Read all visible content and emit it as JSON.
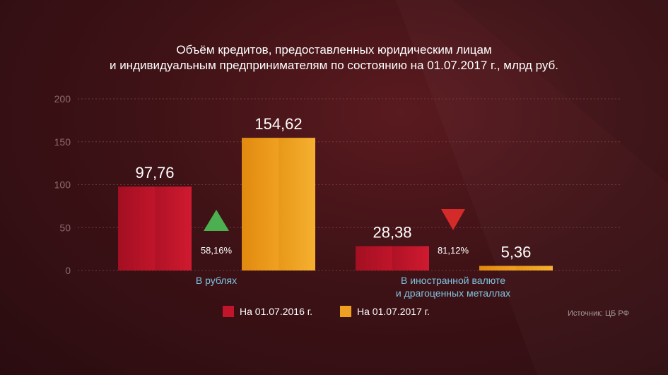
{
  "title_line1": "Объём кредитов, предоставленных юридическим лицам",
  "title_line2": "и индивидуальным предпринимателям по состоянию на 01.07.2017 г., млрд руб.",
  "source": "Источник: ЦБ РФ",
  "colors": {
    "series_2016": "#c0152a",
    "series_2017": "#f0a020",
    "up_arrow": "#4caf50",
    "down_arrow": "#d42a2a",
    "category_text": "#7fc3e0"
  },
  "chart_data": {
    "type": "bar",
    "categories": [
      "В рублях",
      "В иностранной валюте\nи драгоценных металлах"
    ],
    "series": [
      {
        "name": "На 01.07.2016 г.",
        "values": [
          97.76,
          28.38
        ],
        "value_labels": [
          "97,76",
          "28,38"
        ]
      },
      {
        "name": "На 01.07.2017 г.",
        "values": [
          154.62,
          5.36
        ],
        "value_labels": [
          "154,62",
          "5,36"
        ]
      }
    ],
    "changes": [
      {
        "label": "58,16%",
        "direction": "up"
      },
      {
        "label": "81,12%",
        "direction": "down"
      }
    ],
    "yticks": [
      "0",
      "50",
      "100",
      "150",
      "200"
    ],
    "ylim": [
      0,
      200
    ],
    "grid": true,
    "legend_position": "bottom"
  }
}
